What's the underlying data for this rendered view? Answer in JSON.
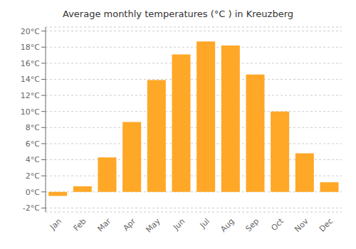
{
  "chart_data": {
    "type": "bar",
    "title": "Average monthly temperatures (°C ) in Kreuzberg",
    "categories": [
      "Jan",
      "Feb",
      "Mar",
      "Apr",
      "May",
      "Jun",
      "Jul",
      "Aug",
      "Sep",
      "Oct",
      "Nov",
      "Dec"
    ],
    "values": [
      -0.5,
      0.7,
      4.3,
      8.7,
      13.9,
      17.1,
      18.7,
      18.2,
      14.6,
      10.0,
      4.8,
      1.2
    ],
    "color": "#FFA726",
    "ylim": [
      -2.5,
      20.5
    ],
    "yticks": [
      {
        "value": -2,
        "label": "-2°C"
      },
      {
        "value": 0,
        "label": "0°C"
      },
      {
        "value": 2,
        "label": "2°C"
      },
      {
        "value": 4,
        "label": "4°C"
      },
      {
        "value": 6,
        "label": "6°C"
      },
      {
        "value": 8,
        "label": "8°C"
      },
      {
        "value": 10,
        "label": "10°C"
      },
      {
        "value": 12,
        "label": "12°C"
      },
      {
        "value": 14,
        "label": "14°C"
      },
      {
        "value": 16,
        "label": "16°C"
      },
      {
        "value": 18,
        "label": "18°C"
      },
      {
        "value": 20,
        "label": "20°C"
      }
    ],
    "grid": true
  }
}
